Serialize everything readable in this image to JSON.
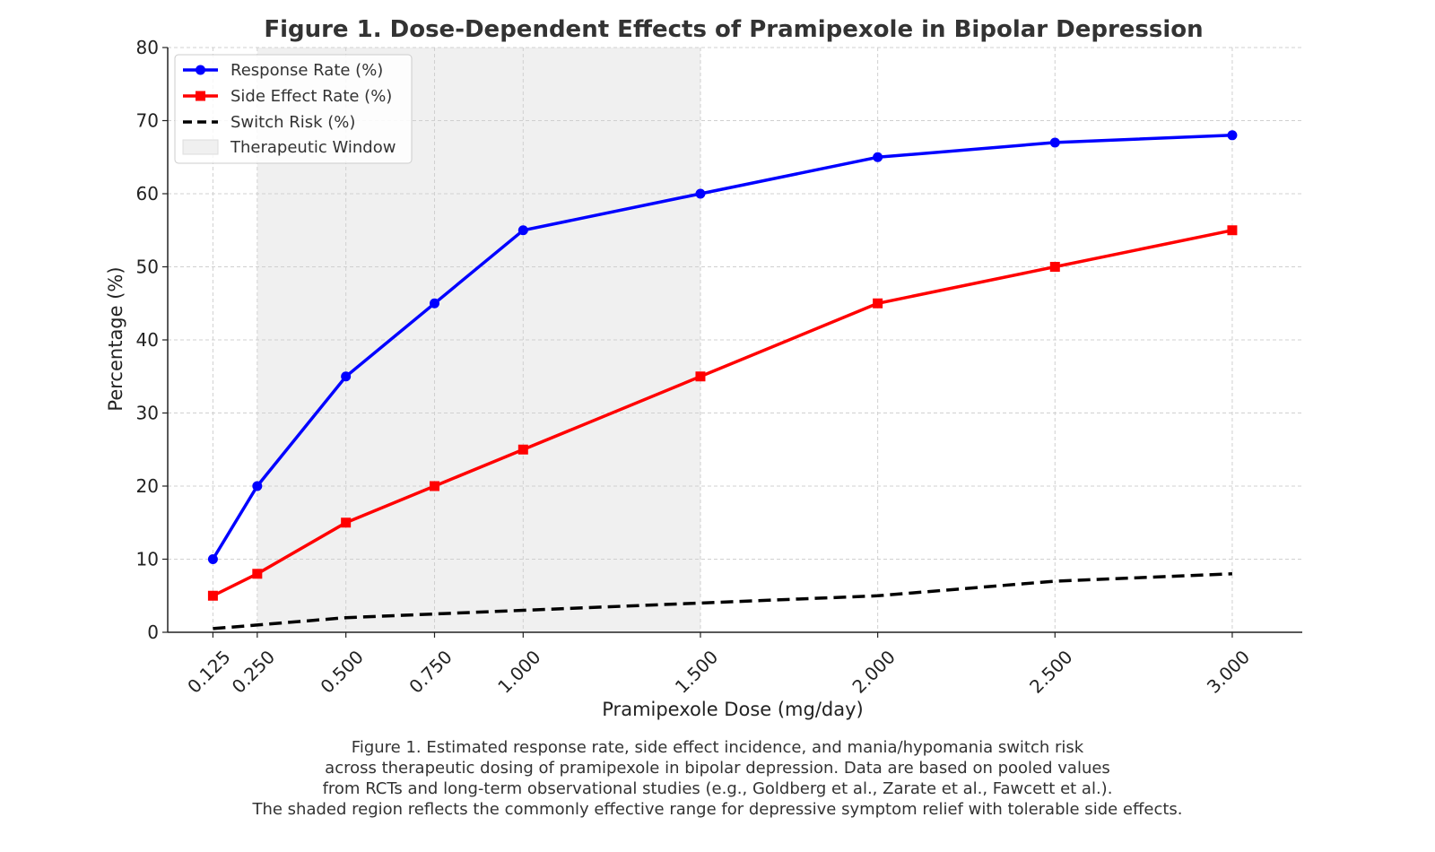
{
  "chart_data": {
    "type": "line",
    "title": "Figure 1. Dose-Dependent Effects of Pramipexole in Bipolar Depression",
    "xlabel": "Pramipexole Dose (mg/day)",
    "ylabel": "Percentage (%)",
    "x": [
      0.125,
      0.25,
      0.5,
      0.75,
      1.0,
      1.5,
      2.0,
      2.5,
      3.0
    ],
    "x_tick_labels": [
      "0.125",
      "0.250",
      "0.500",
      "0.750",
      "1.000",
      "1.500",
      "2.000",
      "2.500",
      "3.000"
    ],
    "ylim": [
      0,
      80
    ],
    "y_ticks": [
      0,
      10,
      20,
      30,
      40,
      50,
      60,
      70,
      80
    ],
    "grid": true,
    "legend_position": "top-left",
    "series": [
      {
        "name": "Response Rate (%)",
        "values": [
          10,
          20,
          35,
          45,
          55,
          60,
          65,
          67,
          68
        ],
        "color": "#0000ff",
        "marker": "circle",
        "line_style": "solid"
      },
      {
        "name": "Side Effect Rate (%)",
        "values": [
          5,
          8,
          15,
          20,
          25,
          35,
          45,
          50,
          55
        ],
        "color": "#ff0000",
        "marker": "square",
        "line_style": "solid"
      },
      {
        "name": "Switch Risk (%)",
        "values": [
          0.5,
          1,
          2,
          2.5,
          3,
          4,
          5,
          7,
          8
        ],
        "color": "#000000",
        "marker": "none",
        "line_style": "dashed"
      }
    ],
    "shaded_region": {
      "name": "Therapeutic Window",
      "x_start": 0.25,
      "x_end": 1.5,
      "color": "#f0f0f0"
    }
  },
  "caption": {
    "lines": [
      "Figure 1. Estimated response rate, side effect incidence, and mania/hypomania switch risk",
      "across therapeutic dosing of pramipexole in bipolar depression. Data are based on pooled values",
      "from RCTs and long-term observational studies (e.g., Goldberg et al., Zarate et al., Fawcett et al.).",
      "The shaded region reflects the commonly effective range for depressive symptom relief with tolerable side effects."
    ]
  }
}
